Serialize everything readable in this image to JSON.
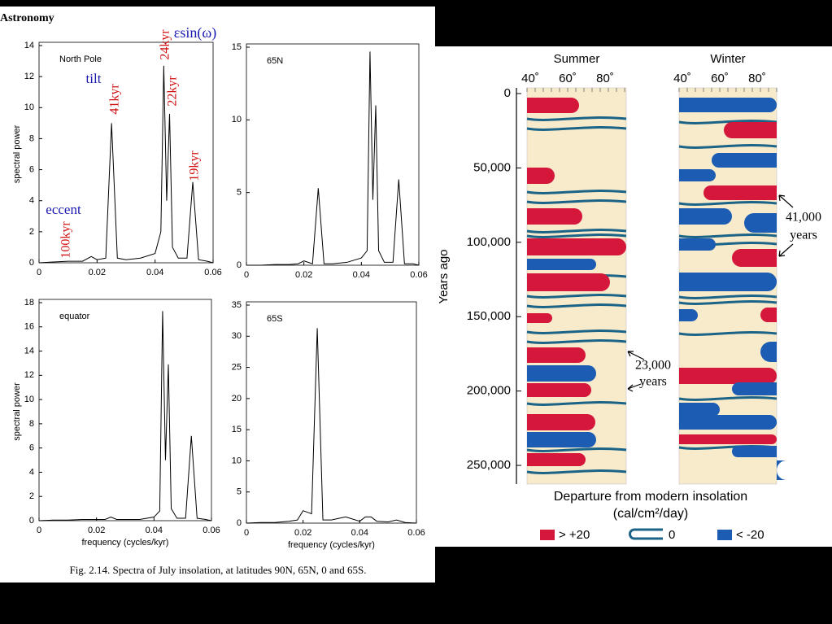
{
  "header": {
    "title": "Astronomy"
  },
  "chart_data": [
    {
      "type": "line",
      "title": "North Pole",
      "ylabel": "spectral power",
      "color": "#000000",
      "x": [
        0,
        0.005,
        0.01,
        0.015,
        0.018,
        0.02,
        0.023,
        0.025,
        0.027,
        0.03,
        0.035,
        0.04,
        0.042,
        0.043,
        0.044,
        0.045,
        0.046,
        0.048,
        0.051,
        0.053,
        0.055,
        0.058,
        0.06
      ],
      "values": [
        0,
        0.05,
        0.1,
        0.1,
        0.4,
        0.2,
        0.3,
        9,
        0.3,
        0.2,
        0.3,
        0.6,
        2,
        12.7,
        4,
        9.6,
        1,
        0.3,
        0.3,
        5.2,
        0.2,
        0.1,
        0
      ],
      "xlim": [
        0,
        0.06
      ],
      "xticks": [
        0,
        0.02,
        0.04,
        0.06
      ],
      "ylim": [
        0,
        14
      ],
      "yticks": [
        0,
        2,
        4,
        6,
        8,
        10,
        12,
        14
      ]
    },
    {
      "type": "line",
      "title": "65N",
      "color": "#000000",
      "x": [
        0,
        0.005,
        0.01,
        0.015,
        0.018,
        0.02,
        0.023,
        0.025,
        0.027,
        0.03,
        0.035,
        0.04,
        0.042,
        0.043,
        0.044,
        0.045,
        0.046,
        0.048,
        0.051,
        0.053,
        0.055,
        0.058,
        0.06
      ],
      "values": [
        0,
        0,
        0.05,
        0.05,
        0.1,
        0.3,
        0.1,
        5.3,
        0.1,
        0.1,
        0.2,
        0.5,
        1,
        14.7,
        4.5,
        11,
        1,
        0.2,
        0.2,
        5.9,
        0.1,
        0.1,
        0
      ],
      "xlim": [
        0,
        0.06
      ],
      "xticks": [
        0,
        0.02,
        0.04,
        0.06
      ],
      "ylim": [
        0,
        15
      ],
      "yticks": [
        0,
        5,
        10,
        15
      ]
    },
    {
      "type": "line",
      "title": "equator",
      "ylabel": "spectral power",
      "xlabel": "frequency (cycles/kyr)",
      "color": "#000000",
      "x": [
        0,
        0.005,
        0.01,
        0.015,
        0.018,
        0.02,
        0.023,
        0.025,
        0.027,
        0.03,
        0.035,
        0.04,
        0.042,
        0.043,
        0.044,
        0.045,
        0.046,
        0.048,
        0.051,
        0.053,
        0.055,
        0.058,
        0.06
      ],
      "values": [
        0,
        0.05,
        0.05,
        0.1,
        0.1,
        0.1,
        0.1,
        0.3,
        0.1,
        0.1,
        0.1,
        0.3,
        0.8,
        17.3,
        5,
        12.9,
        1,
        0.2,
        0.2,
        7,
        0.2,
        0.1,
        0
      ],
      "xlim": [
        0,
        0.06
      ],
      "xticks": [
        0,
        0.02,
        0.04,
        0.06
      ],
      "ylim": [
        0,
        18
      ],
      "yticks": [
        0,
        2,
        4,
        6,
        8,
        10,
        12,
        14,
        16,
        18
      ]
    },
    {
      "type": "line",
      "title": "65S",
      "xlabel": "frequency (cycles/kyr)",
      "color": "#000000",
      "x": [
        0,
        0.005,
        0.01,
        0.015,
        0.018,
        0.02,
        0.023,
        0.025,
        0.027,
        0.03,
        0.035,
        0.04,
        0.042,
        0.044,
        0.046,
        0.05,
        0.053,
        0.056,
        0.06
      ],
      "values": [
        0,
        0.1,
        0.1,
        0.3,
        0.5,
        2,
        1.5,
        31.3,
        0.5,
        0.5,
        1,
        0.3,
        1,
        1,
        0.3,
        0.2,
        0.5,
        0.1,
        0
      ],
      "xlim": [
        0,
        0.06
      ],
      "xticks": [
        0,
        0.02,
        0.04,
        0.06
      ],
      "ylim": [
        0,
        35
      ],
      "yticks": [
        0,
        5,
        10,
        15,
        20,
        25,
        30,
        35
      ]
    }
  ],
  "annotations": {
    "esinw": "εsin(ω)",
    "tilt": "tilt",
    "eccent": "eccent",
    "p24": "24kyr",
    "p22": "22kyr",
    "p41": "41kyr",
    "p19": "19kyr",
    "p100": "100kyr"
  },
  "caption": "Fig. 2.14.  Spectra of July insolation, at latitudes 90N, 65N, 0 and 65S.",
  "insolation": {
    "columns": [
      "Summer",
      "Winter"
    ],
    "latitudes": [
      "40˚",
      "60˚",
      "80˚"
    ],
    "ylabel": "Years ago",
    "ylim": [
      0,
      262000
    ],
    "yticks": [
      0,
      {
        "value": 50000,
        "label": "50,000"
      },
      {
        "value": 100000,
        "label": "100,000"
      },
      {
        "value": 150000,
        "label": "150,000"
      },
      {
        "value": 200000,
        "label": "200,000"
      },
      {
        "value": 250000,
        "label": "250,000"
      }
    ],
    "annotations": [
      "41,000",
      "years",
      "23,000",
      "years"
    ],
    "title": "Departure from modern insolation",
    "units": "(cal/cm²/day)",
    "background": "#f8ebcc",
    "legend": [
      {
        "label": "> +20",
        "color": "#d5173b"
      },
      {
        "label": "0",
        "color": "#1b6487"
      },
      {
        "label": "< -20",
        "color": "#1c5db3"
      }
    ]
  }
}
